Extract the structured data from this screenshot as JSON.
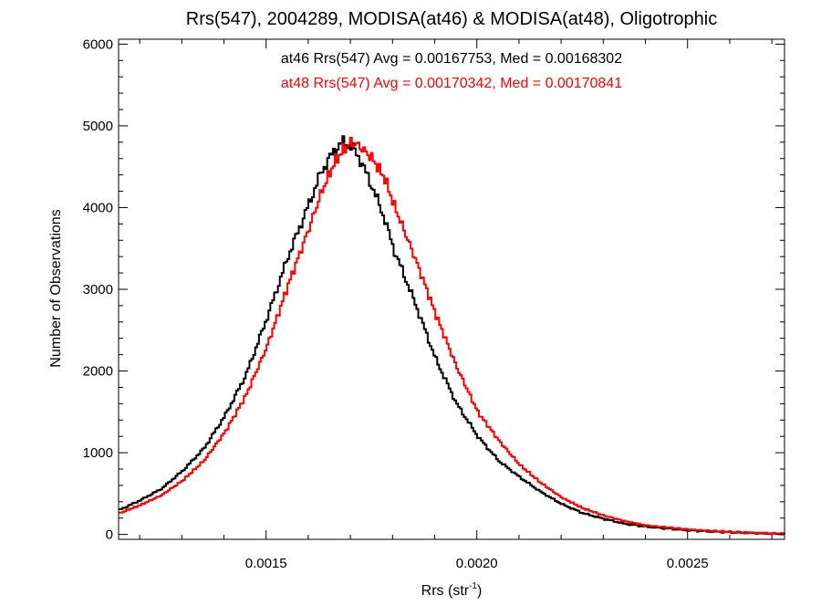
{
  "chart_data": {
    "type": "line",
    "style": "histogram-step",
    "title": "Rrs(547), 2004289, MODISA(at46) & MODISA(at48), Oligotrophic",
    "xlabel": "Rrs (str",
    "xlabel_superscript": "-1",
    "xlabel_suffix": ")",
    "ylabel": "Number of Observations",
    "xlim": [
      0.00115,
      0.00273
    ],
    "ylim": [
      -60,
      6060
    ],
    "xticks": [
      {
        "value": 0.0015,
        "label": "0.0015"
      },
      {
        "value": 0.002,
        "label": "0.0020"
      },
      {
        "value": 0.0025,
        "label": "0.0025"
      }
    ],
    "yticks": [
      {
        "value": 0,
        "label": "0"
      },
      {
        "value": 1000,
        "label": "1000"
      },
      {
        "value": 2000,
        "label": "2000"
      },
      {
        "value": 3000,
        "label": "3000"
      },
      {
        "value": 4000,
        "label": "4000"
      },
      {
        "value": 5000,
        "label": "5000"
      },
      {
        "value": 6000,
        "label": "6000"
      }
    ],
    "grid": false,
    "annotations": [
      {
        "text": "at46 Rrs(547) Avg = 0.00167753, Med = 0.00168302",
        "color": "#000000"
      },
      {
        "text": "at48 Rrs(547) Avg = 0.00170342, Med = 0.00170841",
        "color": "#ff0000"
      }
    ],
    "series": [
      {
        "color": "#000000",
        "x": [
          0.00115,
          0.0012,
          0.00125,
          0.0013,
          0.00135,
          0.0014,
          0.00145,
          0.0015,
          0.00155,
          0.0016,
          0.00163,
          0.00166,
          0.00168,
          0.0017,
          0.00172,
          0.00175,
          0.00178,
          0.0018,
          0.00185,
          0.0019,
          0.00195,
          0.002,
          0.00205,
          0.0021,
          0.00215,
          0.0022,
          0.00225,
          0.0023,
          0.00235,
          0.0024,
          0.0025,
          0.0026,
          0.0027,
          0.00273
        ],
        "values": [
          300,
          420,
          560,
          780,
          1050,
          1450,
          1950,
          2650,
          3400,
          4050,
          4450,
          4700,
          4800,
          4750,
          4600,
          4250,
          3850,
          3500,
          2850,
          2150,
          1600,
          1200,
          900,
          700,
          520,
          370,
          260,
          190,
          130,
          95,
          50,
          25,
          10,
          5
        ]
      },
      {
        "color": "#ff0000",
        "x": [
          0.00115,
          0.0012,
          0.00125,
          0.0013,
          0.00135,
          0.0014,
          0.00145,
          0.0015,
          0.00155,
          0.0016,
          0.00163,
          0.00166,
          0.00168,
          0.0017,
          0.00172,
          0.00175,
          0.00178,
          0.0018,
          0.00185,
          0.0019,
          0.00195,
          0.002,
          0.00205,
          0.0021,
          0.00215,
          0.0022,
          0.00225,
          0.0023,
          0.00235,
          0.0024,
          0.0025,
          0.0026,
          0.0027,
          0.00273
        ],
        "values": [
          260,
          360,
          480,
          660,
          900,
          1250,
          1700,
          2300,
          3050,
          3750,
          4200,
          4550,
          4700,
          4800,
          4750,
          4600,
          4350,
          4050,
          3400,
          2700,
          2050,
          1500,
          1150,
          850,
          630,
          450,
          320,
          230,
          160,
          110,
          60,
          30,
          12,
          6
        ]
      }
    ]
  }
}
